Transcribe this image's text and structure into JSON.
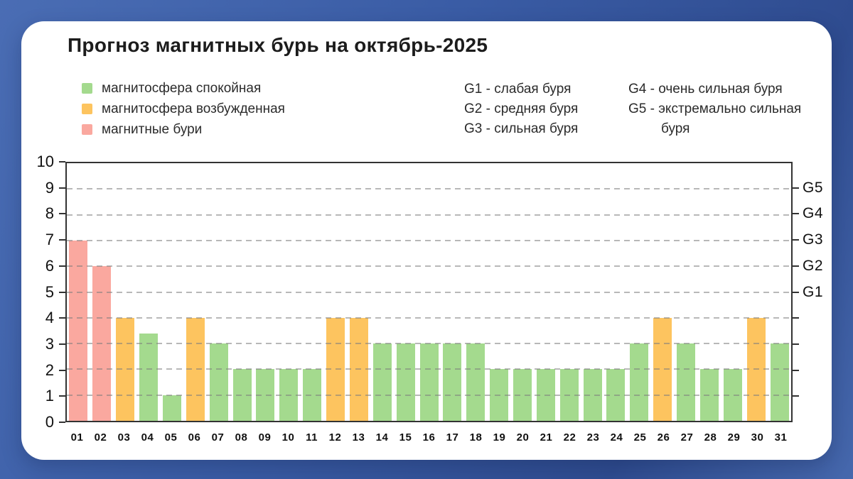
{
  "title": "Прогноз магнитных бурь на октябрь-2025",
  "legend": [
    {
      "key": "calm",
      "label": "магнитосфера спокойная",
      "color": "#a4da8e"
    },
    {
      "key": "excited",
      "label": "магнитосфера возбужденная",
      "color": "#fdc45f"
    },
    {
      "key": "storm",
      "label": "магнитные бури",
      "color": "#faa89f"
    }
  ],
  "storm_scale": {
    "col1": [
      "G1 - слабая буря",
      "G2 - средняя буря",
      "G3 - сильная буря"
    ],
    "col2": [
      "G4 - очень сильная буря",
      "G5 - экстремально сильная буря"
    ]
  },
  "chart_data": {
    "type": "bar",
    "title": "Прогноз магнитных бурь на октябрь-2025",
    "categories": [
      "01",
      "02",
      "03",
      "04",
      "05",
      "06",
      "07",
      "08",
      "09",
      "10",
      "11",
      "12",
      "13",
      "14",
      "15",
      "16",
      "17",
      "18",
      "19",
      "20",
      "21",
      "22",
      "23",
      "24",
      "25",
      "26",
      "27",
      "28",
      "29",
      "30",
      "31"
    ],
    "values": [
      7,
      6,
      4,
      3.4,
      1,
      4,
      3,
      2,
      2,
      2,
      2,
      4,
      4,
      3,
      3,
      3,
      3,
      3,
      2,
      2,
      2,
      2,
      2,
      2,
      3,
      4,
      3,
      2,
      2,
      4,
      3
    ],
    "statuses": [
      "storm",
      "storm",
      "excited",
      "calm",
      "calm",
      "excited",
      "calm",
      "calm",
      "calm",
      "calm",
      "calm",
      "excited",
      "excited",
      "calm",
      "calm",
      "calm",
      "calm",
      "calm",
      "calm",
      "calm",
      "calm",
      "calm",
      "calm",
      "calm",
      "calm",
      "excited",
      "calm",
      "calm",
      "calm",
      "excited",
      "calm"
    ],
    "status_colors": {
      "calm": "#a4da8e",
      "excited": "#fdc45f",
      "storm": "#faa89f"
    },
    "xlabel": "",
    "ylabel": "",
    "ylim": [
      0,
      10
    ],
    "yticks": [
      0,
      1,
      2,
      3,
      4,
      5,
      6,
      7,
      8,
      9,
      10
    ],
    "gridlines_at": [
      1,
      2,
      3,
      4,
      5,
      6,
      7,
      8,
      9
    ],
    "grid_style": "dashed horizontal",
    "right_axis": [
      {
        "value": 5,
        "label": "G1"
      },
      {
        "value": 6,
        "label": "G2"
      },
      {
        "value": 7,
        "label": "G3"
      },
      {
        "value": 8,
        "label": "G4"
      },
      {
        "value": 9,
        "label": "G5"
      }
    ],
    "legend_position": "top-left"
  }
}
